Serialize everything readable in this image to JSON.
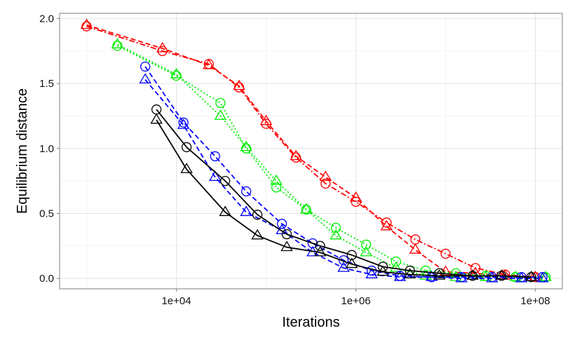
{
  "chart_data": {
    "type": "line",
    "title": "",
    "xlabel": "Iterations",
    "ylabel": "Equilibrium distance",
    "x_scale": "log10",
    "xlim": [
      500,
      200000000
    ],
    "ylim": [
      -0.08,
      2.04
    ],
    "x_ticks": [
      10000,
      1000000,
      100000000
    ],
    "x_tick_labels": [
      "1e+04",
      "1e+06",
      "1e+08"
    ],
    "y_ticks": [
      0.0,
      0.5,
      1.0,
      1.5,
      2.0
    ],
    "y_tick_labels": [
      "0.0",
      "0.5",
      "1.0",
      "1.5",
      "2.0"
    ],
    "grid": true,
    "legend": "none",
    "series": [
      {
        "color": "#ff0000",
        "line_style": "dot-dash",
        "marker": "circle",
        "x": [
          1000,
          7000,
          23000,
          50000,
          100000,
          215000,
          460000,
          1000000,
          2200000,
          4600000,
          10000000,
          21500000,
          46000000,
          100000000
        ],
        "y": [
          1.94,
          1.75,
          1.65,
          1.47,
          1.19,
          0.93,
          0.73,
          0.59,
          0.43,
          0.3,
          0.19,
          0.08,
          0.03,
          0.01
        ]
      },
      {
        "color": "#ff0000",
        "line_style": "dashed",
        "marker": "triangle",
        "x": [
          1000,
          7000,
          23000,
          50000,
          100000,
          215000,
          460000,
          1000000,
          2200000,
          4600000,
          10000000,
          21500000,
          46000000,
          100000000
        ],
        "y": [
          1.95,
          1.77,
          1.64,
          1.48,
          1.21,
          0.94,
          0.78,
          0.62,
          0.4,
          0.22,
          0.05,
          0.04,
          0.02,
          0.01
        ]
      },
      {
        "color": "#00ee00",
        "line_style": "dotted",
        "marker": "circle",
        "x": [
          2200,
          10000,
          31000,
          60000,
          130000,
          280000,
          600000,
          1300000,
          2800000,
          6000000,
          13000000,
          28000000,
          60000000,
          130000000
        ],
        "y": [
          1.79,
          1.56,
          1.35,
          1.0,
          0.7,
          0.53,
          0.39,
          0.26,
          0.13,
          0.06,
          0.04,
          0.02,
          0.01,
          0.01
        ]
      },
      {
        "color": "#00ee00",
        "line_style": "dotted",
        "marker": "triangle",
        "x": [
          2200,
          10000,
          31000,
          60000,
          130000,
          280000,
          600000,
          1300000,
          2800000,
          6000000,
          13000000,
          28000000,
          60000000,
          130000000
        ],
        "y": [
          1.8,
          1.57,
          1.25,
          1.01,
          0.75,
          0.53,
          0.33,
          0.2,
          0.08,
          0.02,
          0.01,
          0.01,
          0.01,
          0.01
        ]
      },
      {
        "color": "#0000ff",
        "line_style": "dashed",
        "marker": "circle",
        "x": [
          4500,
          12000,
          27000,
          60000,
          150000,
          330000,
          730000,
          1500000,
          3100000,
          7000000,
          15000000,
          33000000,
          70000000,
          120000000
        ],
        "y": [
          1.63,
          1.2,
          0.94,
          0.67,
          0.42,
          0.27,
          0.14,
          0.06,
          0.02,
          0.01,
          0.01,
          0.01,
          0.01,
          0.01
        ]
      },
      {
        "color": "#0000ff",
        "line_style": "dashed",
        "marker": "triangle",
        "x": [
          4500,
          12000,
          27000,
          60000,
          150000,
          330000,
          730000,
          1500000,
          3100000,
          7000000,
          15000000,
          33000000,
          70000000,
          120000000
        ],
        "y": [
          1.53,
          1.18,
          0.78,
          0.51,
          0.37,
          0.2,
          0.08,
          0.03,
          0.01,
          0.01,
          0.0,
          0.0,
          0.0,
          0.0
        ]
      },
      {
        "color": "#000000",
        "line_style": "solid",
        "marker": "circle",
        "x": [
          6000,
          13000,
          35000,
          80000,
          170000,
          400000,
          900000,
          2000000,
          4000000,
          8500000,
          20000000,
          42000000,
          90000000
        ],
        "y": [
          1.3,
          1.01,
          0.75,
          0.49,
          0.34,
          0.25,
          0.18,
          0.09,
          0.06,
          0.04,
          0.02,
          0.02,
          0.01
        ]
      },
      {
        "color": "#000000",
        "line_style": "solid",
        "marker": "triangle",
        "x": [
          6000,
          13000,
          35000,
          80000,
          170000,
          400000,
          900000,
          2000000,
          4000000,
          8500000,
          20000000,
          42000000,
          90000000
        ],
        "y": [
          1.22,
          0.84,
          0.51,
          0.33,
          0.24,
          0.2,
          0.11,
          0.05,
          0.03,
          0.02,
          0.02,
          0.02,
          0.01
        ]
      }
    ]
  }
}
